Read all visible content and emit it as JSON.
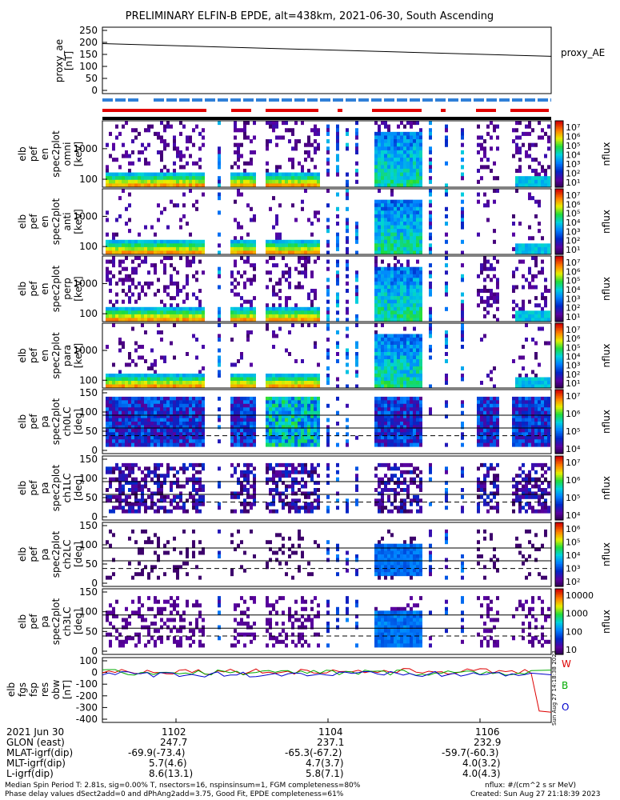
{
  "title": "PRELIMINARY ELFIN-B EPDE, alt=438km, 2021-06-30, South Ascending",
  "time_ticks": [
    "1102",
    "1104",
    "1106"
  ],
  "panels": [
    {
      "id": "proxy_ae",
      "ylabel": [
        "proxy_ae",
        "[nT]"
      ],
      "ticks": [
        "250",
        "200",
        "150",
        "100",
        "50",
        "0"
      ],
      "right_label": "proxy_AE"
    },
    {
      "id": "en0",
      "ylabel": [
        "elb",
        "pef",
        "en",
        "spec2plot",
        "omni",
        "[keV]"
      ],
      "ticks": [
        "1000",
        "100"
      ],
      "cbar_label": "nflux",
      "cbar_ticks": [
        "10⁷",
        "10⁶",
        "10⁵",
        "10⁴",
        "10³",
        "10²",
        "10¹"
      ]
    },
    {
      "id": "en1",
      "ylabel": [
        "elb",
        "pef",
        "en",
        "spec2plot",
        "anti",
        "[keV]"
      ],
      "ticks": [
        "1000",
        "100"
      ],
      "cbar_label": "nflux",
      "cbar_ticks": [
        "10⁷",
        "10⁶",
        "10⁵",
        "10⁴",
        "10³",
        "10²",
        "10¹"
      ]
    },
    {
      "id": "en2",
      "ylabel": [
        "elb",
        "pef",
        "en",
        "spec2plot",
        "perp",
        "[keV]"
      ],
      "ticks": [
        "1000",
        "100"
      ],
      "cbar_label": "nflux",
      "cbar_ticks": [
        "10⁷",
        "10⁶",
        "10⁵",
        "10⁴",
        "10³",
        "10²",
        "10¹"
      ]
    },
    {
      "id": "en3",
      "ylabel": [
        "elb",
        "pef",
        "en",
        "spec2plot",
        "para",
        "[keV]"
      ],
      "ticks": [
        "1000",
        "100"
      ],
      "cbar_label": "nflux",
      "cbar_ticks": [
        "10⁷",
        "10⁶",
        "10⁵",
        "10⁴",
        "10³",
        "10²",
        "10¹"
      ]
    },
    {
      "id": "pa0",
      "ylabel": [
        "elb",
        "pef",
        "pa",
        "spec2plot",
        "ch0LC",
        "[deg]"
      ],
      "ticks": [
        "150",
        "100",
        "50",
        "0"
      ],
      "cbar_label": "nflux",
      "cbar_ticks": [
        "10⁷",
        "10⁶",
        "10⁵",
        "10⁴"
      ]
    },
    {
      "id": "pa1",
      "ylabel": [
        "elb",
        "pef",
        "pa",
        "spec2plot",
        "ch1LC",
        "[deg]"
      ],
      "ticks": [
        "150",
        "100",
        "50",
        "0"
      ],
      "cbar_label": "nflux",
      "cbar_ticks": [
        "10⁷",
        "10⁶",
        "10⁵",
        "10⁴"
      ]
    },
    {
      "id": "pa2",
      "ylabel": [
        "elb",
        "pef",
        "pa",
        "spec2plot",
        "ch2LC",
        "[deg]"
      ],
      "ticks": [
        "150",
        "100",
        "50",
        "0"
      ],
      "cbar_label": "nflux",
      "cbar_ticks": [
        "10⁶",
        "10⁵",
        "10⁴",
        "10³",
        "10²"
      ]
    },
    {
      "id": "pa3",
      "ylabel": [
        "elb",
        "pef",
        "pa",
        "spec2plot",
        "ch3LC",
        "[deg]"
      ],
      "ticks": [
        "150",
        "100",
        "50",
        "0"
      ],
      "cbar_label": "nflux",
      "cbar_ticks": [
        "10000",
        "1000",
        "100",
        "10"
      ]
    },
    {
      "id": "mag",
      "ylabel": [
        "elb",
        "fgs",
        "fsp",
        "res",
        "obw",
        "[nT]"
      ],
      "ticks": [
        "100",
        "0",
        "-100",
        "-200",
        "-300",
        "-400"
      ],
      "legend": [
        "W",
        "B",
        "O"
      ]
    }
  ],
  "created_vertical": "Sun Aug 27 14:18:38 2023",
  "footer": {
    "rows": [
      {
        "label": "2021 Jun 30",
        "v1": "1102",
        "v2": "1104",
        "v3": "1106"
      },
      {
        "label": "GLON (east)",
        "v1": "247.7",
        "v2": "237.1",
        "v3": "232.9"
      },
      {
        "label": "MLAT-igrf(dip)",
        "v1": "-69.9(-73.4)",
        "v2": "-65.3(-67.2)",
        "v3": "-59.7(-60.3)"
      },
      {
        "label": "MLT-igrf(dip)",
        "v1": "5.7(4.6)",
        "v2": "4.7(3.7)",
        "v3": "4.0(3.2)"
      },
      {
        "label": "L-igrf(dip)",
        "v1": "8.6(13.1)",
        "v2": "5.8(7.1)",
        "v3": "4.0(4.3)"
      }
    ],
    "note1": "Median Spin Period T: 2.81s, sig=0.00% T, nsectors=16, nspinsinsum=1, FGM completeness=80%",
    "note2": "Phase delay values dSect2add=0 and dPhAng2add=3.75, Good Fit, EPDE completeness=61%",
    "units": "nflux: #/(cm^2 s sr MeV)",
    "created": "Created: Sun Aug 27 21:18:39 2023"
  },
  "colors": {
    "W": "#dd0000",
    "B": "#00aa00",
    "O": "#0000cc",
    "bar_red": "#e00000",
    "bar_blue": "#2f7fd8"
  },
  "chart_data": {
    "type": "heatmap",
    "title": "PRELIMINARY ELFIN-B EPDE, alt=438km, 2021-06-30, South Ascending",
    "x_ticks": [
      "1102",
      "1104",
      "1106"
    ],
    "proxy_ae": {
      "ylabel": "proxy_ae [nT]",
      "ylim": [
        0,
        250
      ],
      "x": [
        "start",
        "end"
      ],
      "y": [
        195,
        142
      ]
    },
    "energy_panels": [
      "omni",
      "anti",
      "perp",
      "para"
    ],
    "energy_ticks_keV": [
      100,
      1000
    ],
    "pitch_angle_ticks_deg": [
      0,
      50,
      100,
      150
    ],
    "mag": {
      "ylabel": "[nT]",
      "ylim": [
        -400,
        100
      ],
      "series": [
        {
          "name": "W"
        },
        {
          "name": "B"
        },
        {
          "name": "O"
        }
      ]
    }
  }
}
